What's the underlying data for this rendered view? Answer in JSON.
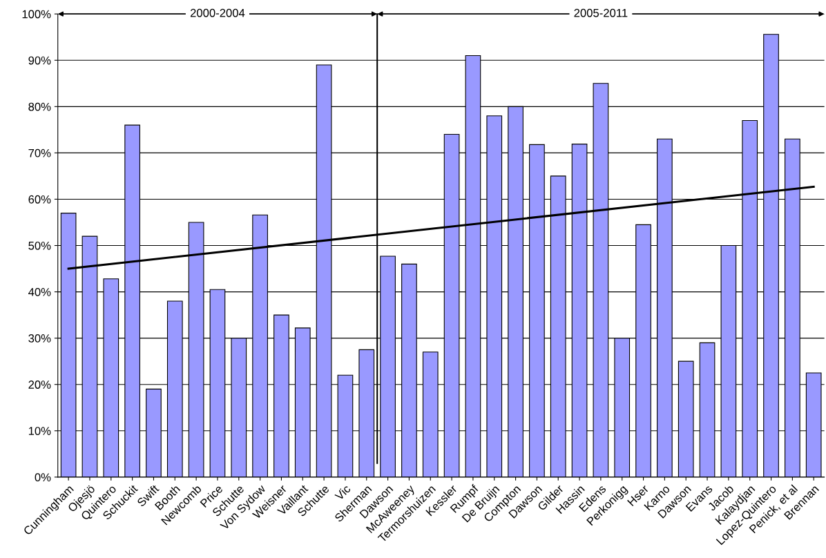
{
  "chart_data": {
    "type": "bar",
    "categories": [
      "Cunningham",
      "Ojesjö",
      "Quintero",
      "Schuckit",
      "Swift",
      "Booth",
      "Newcomb",
      "Price",
      "Schutte",
      "Von Sydow",
      "Weisner",
      "Vaillant",
      "Schutte",
      "Vic",
      "Sherman",
      "Dawson",
      "McAweeney",
      "Termorshuizen",
      "Kessler",
      "Rumpf",
      "De Bruijn",
      "Compton",
      "Dawson",
      "Gilder",
      "Hassin",
      "Edens",
      "Perkonigg",
      "Hser",
      "Karno",
      "Dawson",
      "Evans",
      "Jacob",
      "Kalaydjan",
      "Lopez-Quintero",
      "Penick, et al",
      "Brennan"
    ],
    "series": [
      {
        "color": "#9999ff",
        "values": [
          57,
          52,
          42.8,
          76,
          19,
          38,
          55,
          40.5,
          30,
          56.6,
          35,
          32.2,
          89,
          22,
          27.5,
          47.7,
          46,
          27,
          74,
          91,
          78,
          80,
          71.8,
          65,
          71.9,
          85,
          30,
          54.5,
          73,
          25,
          29,
          50,
          77,
          95.6,
          73,
          22.5
        ]
      },
      {
        "type": "line",
        "color": "#000000",
        "x": [
          "Cunningham",
          "Brennan"
        ],
        "values": [
          45,
          62.7
        ]
      }
    ],
    "ref_lines": [
      {
        "axis": "x",
        "value": "Dawson",
        "color": "#000000"
      }
    ],
    "annotations": [
      "2000-2004",
      "2005-2011"
    ],
    "ylim": [
      0,
      100
    ],
    "yticks": [
      {
        "value": 0,
        "label": "0%"
      },
      {
        "value": 10,
        "label": "10%"
      },
      {
        "value": 20,
        "label": "20%"
      },
      {
        "value": 30,
        "label": "30%"
      },
      {
        "value": 40,
        "label": "40%"
      },
      {
        "value": 50,
        "label": "50%"
      },
      {
        "value": 60,
        "label": "60%"
      },
      {
        "value": 70,
        "label": "70%"
      },
      {
        "value": 80,
        "label": "80%"
      },
      {
        "value": 90,
        "label": "90%"
      },
      {
        "value": 100,
        "label": "100%"
      }
    ],
    "grid": "y",
    "legend": false
  }
}
